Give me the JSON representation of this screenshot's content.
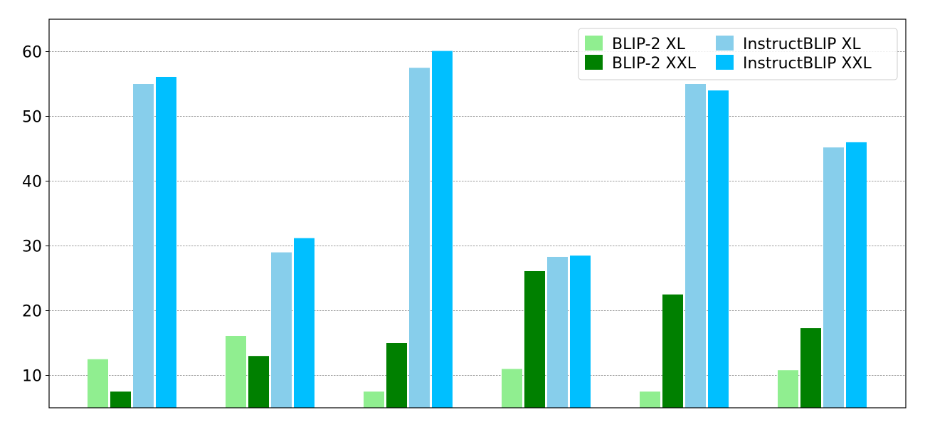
{
  "chart_data": {
    "type": "bar",
    "title": "",
    "xlabel": "",
    "ylabel": "",
    "categories": [
      "",
      "",
      "",
      "",
      "",
      ""
    ],
    "ylim": [
      5,
      65
    ],
    "yticks": [
      10,
      20,
      30,
      40,
      50,
      60
    ],
    "grid": "y",
    "legend_position": "top-right",
    "legend_columns": 2,
    "series": [
      {
        "name": "BLIP-2 XL",
        "color": "#90ee90",
        "values": [
          12.5,
          16.1,
          7.5,
          11.0,
          7.5,
          10.8
        ]
      },
      {
        "name": "BLIP-2 XXL",
        "color": "#008000",
        "values": [
          7.5,
          13.0,
          15.0,
          26.1,
          22.5,
          17.3
        ]
      },
      {
        "name": "InstructBLIP XL",
        "color": "#87ceeb",
        "values": [
          55.0,
          29.0,
          57.5,
          28.3,
          55.0,
          45.2
        ]
      },
      {
        "name": "InstructBLIP XXL",
        "color": "#00bfff",
        "values": [
          56.1,
          31.2,
          60.1,
          28.5,
          54.0,
          46.0
        ]
      }
    ]
  }
}
